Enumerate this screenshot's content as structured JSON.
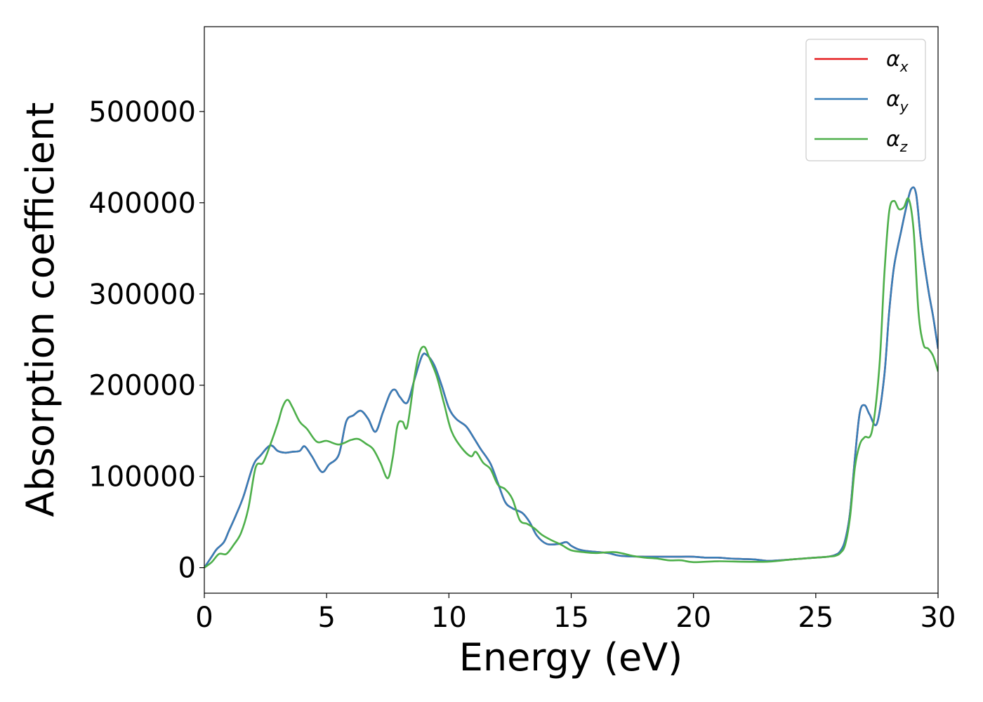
{
  "chart_data": {
    "type": "line",
    "title": "",
    "xlabel": "Energy (eV)",
    "ylabel": "Absorption coefficient",
    "xlim": [
      0,
      30
    ],
    "ylim": [
      -28000,
      593000
    ],
    "xticks": [
      0,
      5,
      10,
      15,
      20,
      25,
      30
    ],
    "yticks": [
      0,
      100000,
      200000,
      300000,
      400000,
      500000
    ],
    "grid": false,
    "legend_position": "top-right",
    "series": [
      {
        "name": "α_x",
        "label_main": "α",
        "label_sub": "x",
        "color": "#e41a1c",
        "x": [
          0,
          0.3,
          0.5,
          0.8,
          1.0,
          1.3,
          1.6,
          2.0,
          2.3,
          2.7,
          3.0,
          3.3,
          3.6,
          3.9,
          4.1,
          4.4,
          4.8,
          5.1,
          5.5,
          5.8,
          6.1,
          6.4,
          6.7,
          7.0,
          7.3,
          7.6,
          7.8,
          8.0,
          8.3,
          8.6,
          8.9,
          9.1,
          9.4,
          9.7,
          10.0,
          10.3,
          10.7,
          11.0,
          11.3,
          11.7,
          12.0,
          12.3,
          12.6,
          13.0,
          13.3,
          13.6,
          14.0,
          14.5,
          14.8,
          15.0,
          15.3,
          15.7,
          16.5,
          17.0,
          18.0,
          19.0,
          19.5,
          20.0,
          20.5,
          21.0,
          21.5,
          22.0,
          22.5,
          23.0,
          23.5,
          24.0,
          24.5,
          25.0,
          25.5,
          25.8,
          26.0,
          26.2,
          26.4,
          26.6,
          26.8,
          27.0,
          27.2,
          27.5,
          27.8,
          28.0,
          28.2,
          28.5,
          28.7,
          28.9,
          29.1,
          29.3,
          29.6,
          29.8,
          30.0
        ],
        "values": [
          0,
          12000,
          20000,
          28000,
          40000,
          58000,
          78000,
          112000,
          123000,
          134000,
          128000,
          126000,
          127000,
          128000,
          133000,
          122000,
          105000,
          113000,
          124000,
          160000,
          167000,
          172000,
          163000,
          149000,
          170000,
          191000,
          195000,
          187000,
          181000,
          207000,
          232000,
          233000,
          222000,
          200000,
          175000,
          163000,
          155000,
          143000,
          130000,
          114000,
          93000,
          72000,
          65000,
          60000,
          50000,
          35000,
          26000,
          26000,
          28000,
          24000,
          20000,
          18000,
          16000,
          13000,
          12000,
          12000,
          12000,
          12000,
          11000,
          11000,
          10000,
          9500,
          9000,
          7500,
          8000,
          9000,
          10000,
          11000,
          12000,
          14000,
          18000,
          30000,
          60000,
          120000,
          170000,
          178000,
          168000,
          158000,
          210000,
          280000,
          330000,
          370000,
          395000,
          415000,
          410000,
          360000,
          305000,
          275000,
          240000
        ]
      },
      {
        "name": "α_y",
        "label_main": "α",
        "label_sub": "y",
        "color": "#377eb8",
        "x": [
          0,
          0.3,
          0.5,
          0.8,
          1.0,
          1.3,
          1.6,
          2.0,
          2.3,
          2.7,
          3.0,
          3.3,
          3.6,
          3.9,
          4.1,
          4.4,
          4.8,
          5.1,
          5.5,
          5.8,
          6.1,
          6.4,
          6.7,
          7.0,
          7.3,
          7.6,
          7.8,
          8.0,
          8.3,
          8.6,
          8.9,
          9.1,
          9.4,
          9.7,
          10.0,
          10.3,
          10.7,
          11.0,
          11.3,
          11.7,
          12.0,
          12.3,
          12.6,
          13.0,
          13.3,
          13.6,
          14.0,
          14.5,
          14.8,
          15.0,
          15.3,
          15.7,
          16.5,
          17.0,
          18.0,
          19.0,
          19.5,
          20.0,
          20.5,
          21.0,
          21.5,
          22.0,
          22.5,
          23.0,
          23.5,
          24.0,
          24.5,
          25.0,
          25.5,
          25.8,
          26.0,
          26.2,
          26.4,
          26.6,
          26.8,
          27.0,
          27.2,
          27.5,
          27.8,
          28.0,
          28.2,
          28.5,
          28.7,
          28.9,
          29.1,
          29.3,
          29.6,
          29.8,
          30.0
        ],
        "values": [
          0,
          12000,
          20000,
          28000,
          40000,
          58000,
          78000,
          112000,
          123000,
          134000,
          128000,
          126000,
          127000,
          128000,
          133000,
          122000,
          105000,
          113000,
          124000,
          160000,
          167000,
          172000,
          163000,
          149000,
          170000,
          191000,
          195000,
          187000,
          181000,
          207000,
          232000,
          233000,
          222000,
          200000,
          175000,
          163000,
          155000,
          143000,
          130000,
          114000,
          93000,
          72000,
          65000,
          60000,
          50000,
          35000,
          26000,
          26000,
          28000,
          24000,
          20000,
          18000,
          16000,
          13000,
          12000,
          12000,
          12000,
          12000,
          11000,
          11000,
          10000,
          9500,
          9000,
          7500,
          8000,
          9000,
          10000,
          11000,
          12000,
          14000,
          18000,
          30000,
          60000,
          120000,
          170000,
          178000,
          168000,
          158000,
          210000,
          280000,
          330000,
          370000,
          395000,
          415000,
          410000,
          360000,
          305000,
          275000,
          240000
        ]
      },
      {
        "name": "α_z",
        "label_main": "α",
        "label_sub": "z",
        "color": "#4daf4a",
        "x": [
          0,
          0.3,
          0.6,
          0.9,
          1.2,
          1.5,
          1.8,
          2.1,
          2.4,
          2.7,
          3.0,
          3.2,
          3.4,
          3.6,
          3.9,
          4.2,
          4.6,
          5.0,
          5.5,
          6.0,
          6.3,
          6.6,
          6.9,
          7.2,
          7.5,
          7.7,
          7.9,
          8.1,
          8.3,
          8.6,
          8.8,
          9.0,
          9.2,
          9.5,
          9.8,
          10.1,
          10.5,
          10.9,
          11.1,
          11.4,
          11.7,
          12.0,
          12.3,
          12.6,
          12.9,
          13.2,
          13.5,
          13.8,
          14.2,
          14.6,
          15.0,
          15.5,
          16.0,
          16.8,
          17.5,
          18.0,
          18.5,
          19.0,
          19.5,
          20.0,
          21.0,
          22.0,
          23.0,
          23.5,
          24.0,
          24.5,
          25.0,
          25.5,
          25.8,
          26.0,
          26.2,
          26.4,
          26.6,
          26.8,
          27.0,
          27.3,
          27.6,
          27.8,
          28.0,
          28.2,
          28.4,
          28.6,
          28.8,
          29.0,
          29.2,
          29.4,
          29.6,
          29.8,
          30.0
        ],
        "values": [
          0,
          6000,
          15000,
          15000,
          25000,
          38000,
          65000,
          110000,
          115000,
          135000,
          158000,
          176000,
          184000,
          176000,
          160000,
          152000,
          138000,
          139000,
          135000,
          140000,
          141000,
          136000,
          130000,
          115000,
          98000,
          120000,
          156000,
          160000,
          155000,
          210000,
          236000,
          242000,
          230000,
          210000,
          180000,
          150000,
          132000,
          122000,
          127000,
          115000,
          108000,
          91000,
          86000,
          75000,
          52000,
          48000,
          43000,
          36000,
          30000,
          25000,
          19000,
          17000,
          16000,
          17000,
          13000,
          11000,
          10000,
          8000,
          8000,
          6000,
          7000,
          6500,
          6500,
          7500,
          9000,
          10000,
          11000,
          12000,
          13000,
          16000,
          25000,
          55000,
          110000,
          135000,
          143000,
          150000,
          220000,
          320000,
          390000,
          402000,
          393000,
          395000,
          404000,
          370000,
          280000,
          245000,
          240000,
          232000,
          215000
        ]
      }
    ]
  }
}
